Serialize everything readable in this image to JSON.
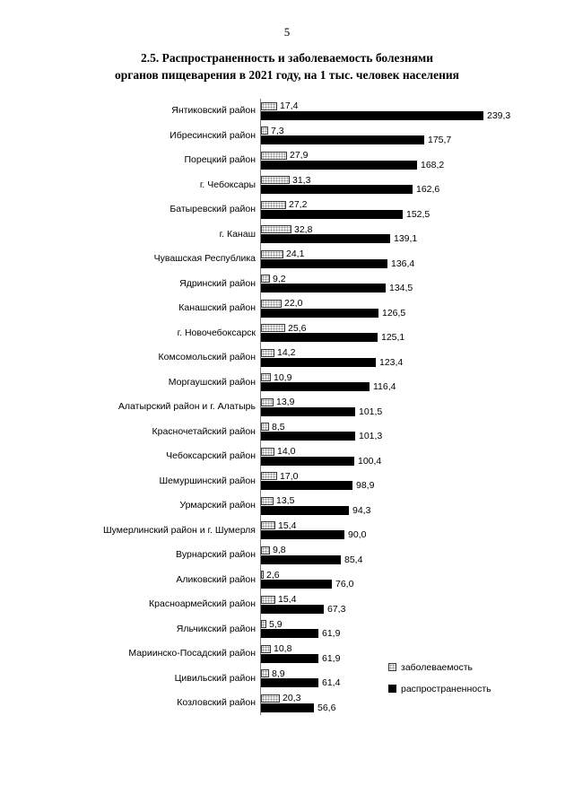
{
  "page": {
    "number": "5"
  },
  "title": {
    "line1": "2.5. Распространенность и заболеваемость болезнями",
    "line2": "органов пищеварения в 2021 году, на 1 тыс. человек населения"
  },
  "legend": {
    "series1": "заболеваемость",
    "series2": "распространенность"
  },
  "chart_data": {
    "type": "bar",
    "orientation": "horizontal",
    "title": "2.5. Распространенность и заболеваемость болезнями органов пищеварения в 2021 году, на 1 тыс. человек населения",
    "xlim": [
      0,
      260
    ],
    "grid": false,
    "legend_position": "right-bottom",
    "value_labels": true,
    "decimal_separator": ",",
    "categories": [
      "Янтиковский район",
      "Ибресинский район",
      "Порецкий район",
      "г. Чебоксары",
      "Батыревский район",
      "г. Канаш",
      "Чувашская Республика",
      "Ядринский район",
      "Канашский район",
      "г. Новочебоксарск",
      "Комсомольский район",
      "Моргаушский район",
      "Алатырский район и г. Алатырь",
      "Красночетайский район",
      "Чебоксарский район",
      "Шемуршинский район",
      "Урмарский район",
      "Шумерлинский район и г. Шумерля",
      "Вурнарский район",
      "Аликовский район",
      "Красноармейский район",
      "Яльчикский район",
      "Мариинско-Посадский район",
      "Цивильский район",
      "Козловский район"
    ],
    "series": [
      {
        "name": "заболеваемость",
        "color": "#d9d9d9",
        "pattern": "dotted",
        "values": [
          17.4,
          7.3,
          27.9,
          31.3,
          27.2,
          32.8,
          24.1,
          9.2,
          22.0,
          25.6,
          14.2,
          10.9,
          13.9,
          8.5,
          14.0,
          17.0,
          13.5,
          15.4,
          9.8,
          2.6,
          15.4,
          5.9,
          10.8,
          8.9,
          20.3
        ]
      },
      {
        "name": "распространенность",
        "color": "#000000",
        "pattern": "solid",
        "values": [
          239.3,
          175.7,
          168.2,
          162.6,
          152.5,
          139.1,
          136.4,
          134.5,
          126.5,
          125.1,
          123.4,
          116.4,
          101.5,
          101.3,
          100.4,
          98.9,
          94.3,
          90.0,
          85.4,
          76.0,
          67.3,
          61.9,
          61.9,
          61.4,
          56.6
        ]
      }
    ]
  }
}
